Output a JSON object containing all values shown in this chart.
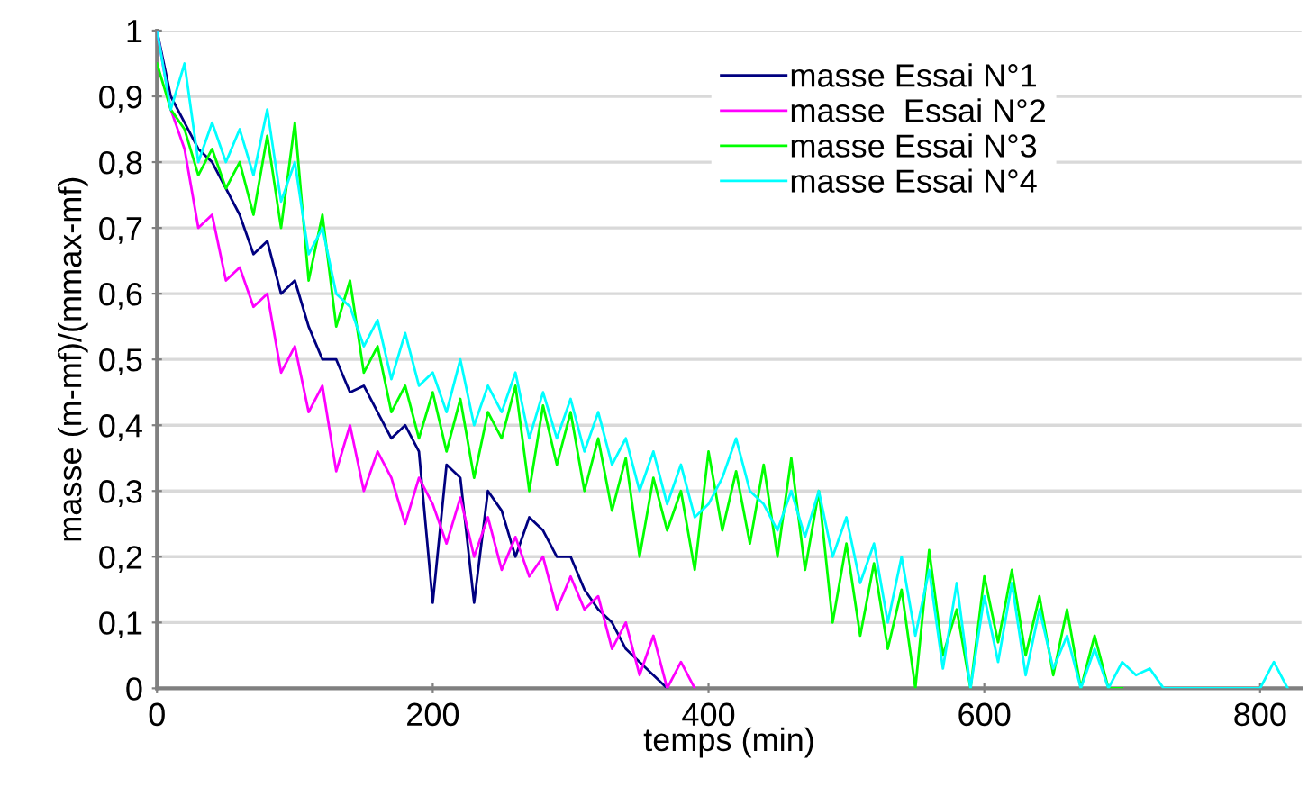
{
  "chart_data": {
    "type": "line",
    "xlabel": "temps (min)",
    "ylabel": "masse (m-mf)/(mmax-mf)",
    "xlim": [
      0,
      830
    ],
    "xticks": [
      0,
      200,
      400,
      600,
      800
    ],
    "ylim": [
      0,
      1
    ],
    "yticks": [
      0,
      {
        "value": 0.1,
        "label": "0,1"
      },
      {
        "value": 0.2,
        "label": "0,2"
      },
      {
        "value": 0.3,
        "label": "0,3"
      },
      {
        "value": 0.4,
        "label": "0,4"
      },
      {
        "value": 0.5,
        "label": "0,5"
      },
      {
        "value": 0.6,
        "label": "0,6"
      },
      {
        "value": 0.7,
        "label": "0,7"
      },
      {
        "value": 0.8,
        "label": "0,8"
      },
      {
        "value": 0.9,
        "label": "0,9"
      },
      1
    ],
    "grid": "y",
    "legend": "top right",
    "marker": "none",
    "line_style": "solid",
    "series": [
      {
        "name": "masse Essai N°1",
        "color": "#000080",
        "x": [
          0,
          10,
          20,
          30,
          40,
          50,
          60,
          70,
          80,
          90,
          100,
          110,
          120,
          130,
          140,
          150,
          160,
          170,
          180,
          190,
          200,
          210,
          220,
          230,
          240,
          250,
          260,
          270,
          280,
          290,
          300,
          310,
          320,
          330,
          340,
          350,
          360,
          370
        ],
        "values": [
          1.0,
          0.9,
          0.86,
          0.82,
          0.8,
          0.76,
          0.72,
          0.66,
          0.68,
          0.6,
          0.62,
          0.55,
          0.5,
          0.5,
          0.45,
          0.46,
          0.42,
          0.38,
          0.4,
          0.36,
          0.13,
          0.34,
          0.32,
          0.13,
          0.3,
          0.27,
          0.2,
          0.26,
          0.24,
          0.2,
          0.2,
          0.15,
          0.12,
          0.1,
          0.06,
          0.04,
          0.02,
          0.0
        ]
      },
      {
        "name": "masse  Essai N°2",
        "color": "#ff00ff",
        "x": [
          0,
          10,
          20,
          30,
          40,
          50,
          60,
          70,
          80,
          90,
          100,
          110,
          120,
          130,
          140,
          150,
          160,
          170,
          180,
          190,
          200,
          210,
          220,
          230,
          240,
          250,
          260,
          270,
          280,
          290,
          300,
          310,
          320,
          330,
          340,
          350,
          360,
          370,
          380,
          390
        ],
        "values": [
          1.0,
          0.88,
          0.82,
          0.7,
          0.72,
          0.62,
          0.64,
          0.58,
          0.6,
          0.48,
          0.52,
          0.42,
          0.46,
          0.33,
          0.4,
          0.3,
          0.36,
          0.32,
          0.25,
          0.32,
          0.28,
          0.22,
          0.29,
          0.2,
          0.26,
          0.18,
          0.23,
          0.17,
          0.2,
          0.12,
          0.17,
          0.12,
          0.14,
          0.06,
          0.1,
          0.02,
          0.08,
          0.0,
          0.04,
          0.0
        ]
      },
      {
        "name": "masse Essai N°3",
        "color": "#00ff00",
        "x": [
          0,
          10,
          20,
          30,
          40,
          50,
          60,
          70,
          80,
          90,
          100,
          110,
          120,
          130,
          140,
          150,
          160,
          170,
          180,
          190,
          200,
          210,
          220,
          230,
          240,
          250,
          260,
          270,
          280,
          290,
          300,
          310,
          320,
          330,
          340,
          350,
          360,
          370,
          380,
          390,
          400,
          410,
          420,
          430,
          440,
          450,
          460,
          470,
          480,
          490,
          500,
          510,
          520,
          530,
          540,
          550,
          560,
          570,
          580,
          590,
          600,
          610,
          620,
          630,
          640,
          650,
          660,
          670,
          680,
          690,
          700
        ],
        "values": [
          0.95,
          0.88,
          0.85,
          0.78,
          0.82,
          0.76,
          0.8,
          0.72,
          0.84,
          0.7,
          0.86,
          0.62,
          0.72,
          0.55,
          0.62,
          0.48,
          0.52,
          0.42,
          0.46,
          0.38,
          0.45,
          0.36,
          0.44,
          0.32,
          0.42,
          0.38,
          0.46,
          0.3,
          0.43,
          0.34,
          0.42,
          0.3,
          0.38,
          0.27,
          0.35,
          0.2,
          0.32,
          0.24,
          0.3,
          0.18,
          0.36,
          0.24,
          0.33,
          0.22,
          0.34,
          0.2,
          0.35,
          0.18,
          0.3,
          0.1,
          0.22,
          0.08,
          0.19,
          0.06,
          0.15,
          0.0,
          0.21,
          0.05,
          0.12,
          0.0,
          0.17,
          0.07,
          0.18,
          0.05,
          0.14,
          0.02,
          0.12,
          0.0,
          0.08,
          0.0,
          0.0
        ]
      },
      {
        "name": "masse Essai N°4",
        "color": "#00ffff",
        "x": [
          0,
          10,
          20,
          30,
          40,
          50,
          60,
          70,
          80,
          90,
          100,
          110,
          120,
          130,
          140,
          150,
          160,
          170,
          180,
          190,
          200,
          210,
          220,
          230,
          240,
          250,
          260,
          270,
          280,
          290,
          300,
          310,
          320,
          330,
          340,
          350,
          360,
          370,
          380,
          390,
          400,
          410,
          420,
          430,
          440,
          450,
          460,
          470,
          480,
          490,
          500,
          510,
          520,
          530,
          540,
          550,
          560,
          570,
          580,
          590,
          600,
          610,
          620,
          630,
          640,
          650,
          660,
          670,
          680,
          690,
          700,
          710,
          720,
          730,
          740,
          750,
          760,
          770,
          780,
          790,
          800,
          810,
          820
        ],
        "values": [
          1.0,
          0.88,
          0.95,
          0.8,
          0.86,
          0.8,
          0.85,
          0.78,
          0.88,
          0.74,
          0.8,
          0.66,
          0.7,
          0.6,
          0.58,
          0.52,
          0.56,
          0.47,
          0.54,
          0.46,
          0.48,
          0.42,
          0.5,
          0.4,
          0.46,
          0.42,
          0.48,
          0.38,
          0.45,
          0.38,
          0.44,
          0.36,
          0.42,
          0.34,
          0.38,
          0.3,
          0.36,
          0.28,
          0.34,
          0.26,
          0.28,
          0.32,
          0.38,
          0.3,
          0.28,
          0.24,
          0.3,
          0.23,
          0.3,
          0.2,
          0.26,
          0.16,
          0.22,
          0.1,
          0.2,
          0.08,
          0.18,
          0.03,
          0.16,
          0.0,
          0.14,
          0.04,
          0.16,
          0.02,
          0.12,
          0.03,
          0.08,
          0.0,
          0.06,
          0.0,
          0.04,
          0.02,
          0.03,
          0.0,
          0.0,
          0,
          0,
          0,
          0,
          0,
          0,
          0.04,
          0.0
        ]
      }
    ]
  }
}
